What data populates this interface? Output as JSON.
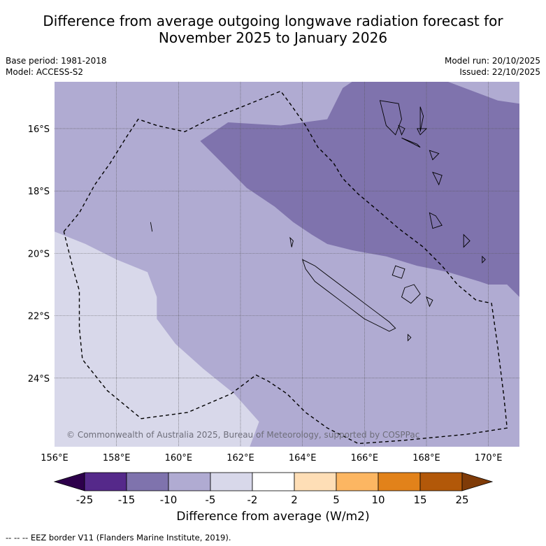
{
  "header": {
    "title_line1": "Difference from average outgoing longwave radiation forecast for",
    "title_line2": "November 2025 to January 2026",
    "base_period": "Base period: 1981-2018",
    "model": "Model: ACCESS-S2",
    "model_run": "Model run: 20/10/2025",
    "issued": "Issued: 22/10/2025"
  },
  "chart_data": {
    "type": "heatmap",
    "title": "Difference from average outgoing longwave radiation forecast for November 2025 to January 2026",
    "map_extent": {
      "lon": [
        156,
        171
      ],
      "lat": [
        -26.2,
        -14.5
      ]
    },
    "x_ticks": [
      {
        "value": 156,
        "label": "156°E"
      },
      {
        "value": 158,
        "label": "158°E"
      },
      {
        "value": 160,
        "label": "160°E"
      },
      {
        "value": 162,
        "label": "162°E"
      },
      {
        "value": 164,
        "label": "164°E"
      },
      {
        "value": 166,
        "label": "166°E"
      },
      {
        "value": 168,
        "label": "168°E"
      },
      {
        "value": 170,
        "label": "170°E"
      }
    ],
    "y_ticks": [
      {
        "value": -16,
        "label": "16°S"
      },
      {
        "value": -18,
        "label": "18°S"
      },
      {
        "value": -20,
        "label": "20°S"
      },
      {
        "value": -22,
        "label": "22°S"
      },
      {
        "value": -24,
        "label": "24°S"
      }
    ],
    "regions": [
      {
        "range": "-5 to -2",
        "color": "#d8d8ea",
        "polygon": [
          [
            156,
            -19.3
          ],
          [
            157,
            -19.7
          ],
          [
            158,
            -20.2
          ],
          [
            159,
            -20.6
          ],
          [
            159.3,
            -21.4
          ],
          [
            159.3,
            -22.1
          ],
          [
            159.9,
            -22.9
          ],
          [
            160.8,
            -23.7
          ],
          [
            161.8,
            -24.5
          ],
          [
            162.6,
            -25.4
          ],
          [
            162.3,
            -26.2
          ],
          [
            156,
            -26.2
          ]
        ]
      },
      {
        "range": "-15 to -10",
        "color": "#7f73ad",
        "polygon": [
          [
            160.7,
            -16.4
          ],
          [
            161.6,
            -15.8
          ],
          [
            163.3,
            -15.9
          ],
          [
            164.8,
            -15.7
          ],
          [
            165.3,
            -14.7
          ],
          [
            165.6,
            -14.5
          ],
          [
            168.7,
            -14.5
          ],
          [
            170.3,
            -15.1
          ],
          [
            171,
            -15.2
          ],
          [
            171,
            -21.4
          ],
          [
            170.6,
            -21.0
          ],
          [
            170,
            -21.0
          ],
          [
            169.7,
            -20.9
          ],
          [
            168.7,
            -20.6
          ],
          [
            167.7,
            -20.4
          ],
          [
            166.7,
            -20.1
          ],
          [
            165.6,
            -19.9
          ],
          [
            164.8,
            -19.7
          ],
          [
            164.3,
            -19.4
          ],
          [
            163.7,
            -19.0
          ],
          [
            163.1,
            -18.5
          ],
          [
            162.2,
            -17.9
          ],
          [
            161.6,
            -17.3
          ]
        ]
      }
    ],
    "base_fill": {
      "range": "-10 to -5",
      "color": "#b0abd2"
    },
    "eez_border": [
      [
        156.3,
        -19.3
      ],
      [
        156.8,
        -18.7
      ],
      [
        157.3,
        -17.8
      ],
      [
        157.8,
        -17.1
      ],
      [
        158.3,
        -16.3
      ],
      [
        158.7,
        -15.7
      ],
      [
        159.3,
        -15.9
      ],
      [
        160.2,
        -16.1
      ],
      [
        161,
        -15.7
      ],
      [
        161.8,
        -15.4
      ],
      [
        163.3,
        -14.8
      ],
      [
        163.6,
        -15.2
      ],
      [
        164.1,
        -15.9
      ],
      [
        164.5,
        -16.6
      ],
      [
        165,
        -17.1
      ],
      [
        165.3,
        -17.6
      ],
      [
        165.8,
        -18.1
      ],
      [
        166.4,
        -18.6
      ],
      [
        167.1,
        -19.2
      ],
      [
        167.9,
        -19.8
      ],
      [
        168.5,
        -20.4
      ],
      [
        169,
        -21.0
      ],
      [
        169.6,
        -21.5
      ],
      [
        170.1,
        -21.6
      ],
      [
        170.3,
        -23.0
      ],
      [
        170.5,
        -24.6
      ],
      [
        170.6,
        -25.6
      ],
      [
        169.3,
        -25.8
      ],
      [
        167.2,
        -26.0
      ],
      [
        165.8,
        -26.1
      ],
      [
        164.8,
        -25.6
      ],
      [
        164.1,
        -25.1
      ],
      [
        163.5,
        -24.5
      ],
      [
        162.9,
        -24.1
      ],
      [
        162.5,
        -23.9
      ],
      [
        161.7,
        -24.5
      ],
      [
        160.3,
        -25.1
      ],
      [
        158.8,
        -25.3
      ],
      [
        157.7,
        -24.4
      ],
      [
        156.9,
        -23.4
      ],
      [
        156.8,
        -22.4
      ],
      [
        156.8,
        -21.2
      ],
      [
        156.6,
        -20.5
      ],
      [
        156.3,
        -19.3
      ]
    ],
    "coastlines": [
      [
        [
          164.0,
          -20.2
        ],
        [
          164.4,
          -20.4
        ],
        [
          164.8,
          -20.7
        ],
        [
          165.2,
          -21.0
        ],
        [
          165.6,
          -21.3
        ],
        [
          166.0,
          -21.6
        ],
        [
          166.4,
          -21.9
        ],
        [
          166.8,
          -22.2
        ],
        [
          167.0,
          -22.4
        ],
        [
          166.8,
          -22.5
        ],
        [
          166.4,
          -22.3
        ],
        [
          166.0,
          -22.1
        ],
        [
          165.6,
          -21.8
        ],
        [
          165.2,
          -21.5
        ],
        [
          164.8,
          -21.2
        ],
        [
          164.4,
          -20.9
        ],
        [
          164.1,
          -20.5
        ],
        [
          164.0,
          -20.2
        ]
      ],
      [
        [
          163.6,
          -19.5
        ],
        [
          163.65,
          -19.8
        ],
        [
          163.7,
          -19.6
        ],
        [
          163.6,
          -19.5
        ]
      ],
      [
        [
          167.0,
          -20.4
        ],
        [
          167.3,
          -20.5
        ],
        [
          167.2,
          -20.8
        ],
        [
          166.9,
          -20.7
        ],
        [
          167.0,
          -20.4
        ]
      ],
      [
        [
          167.3,
          -21.1
        ],
        [
          167.6,
          -21.0
        ],
        [
          167.8,
          -21.3
        ],
        [
          167.5,
          -21.6
        ],
        [
          167.2,
          -21.4
        ],
        [
          167.3,
          -21.1
        ]
      ],
      [
        [
          168.0,
          -21.4
        ],
        [
          168.2,
          -21.5
        ],
        [
          168.1,
          -21.7
        ],
        [
          168.0,
          -21.4
        ]
      ],
      [
        [
          167.4,
          -22.6
        ],
        [
          167.5,
          -22.7
        ],
        [
          167.4,
          -22.8
        ],
        [
          167.4,
          -22.6
        ]
      ],
      [
        [
          166.5,
          -15.1
        ],
        [
          167.1,
          -15.2
        ],
        [
          167.2,
          -15.7
        ],
        [
          167.0,
          -16.2
        ],
        [
          166.7,
          -15.9
        ],
        [
          166.5,
          -15.1
        ]
      ],
      [
        [
          167.1,
          -15.9
        ],
        [
          167.3,
          -16.0
        ],
        [
          167.2,
          -16.2
        ],
        [
          167.1,
          -15.9
        ]
      ],
      [
        [
          167.8,
          -15.3
        ],
        [
          167.9,
          -15.6
        ],
        [
          167.8,
          -16.1
        ],
        [
          167.8,
          -15.3
        ]
      ],
      [
        [
          167.7,
          -16.0
        ],
        [
          168.0,
          -16.0
        ],
        [
          167.8,
          -16.2
        ],
        [
          167.7,
          -16.0
        ]
      ],
      [
        [
          167.2,
          -16.3
        ],
        [
          167.7,
          -16.5
        ],
        [
          167.8,
          -16.6
        ],
        [
          167.6,
          -16.5
        ],
        [
          167.2,
          -16.3
        ]
      ],
      [
        [
          168.1,
          -16.7
        ],
        [
          168.4,
          -16.8
        ],
        [
          168.2,
          -17.0
        ],
        [
          168.1,
          -16.7
        ]
      ],
      [
        [
          168.2,
          -17.4
        ],
        [
          168.5,
          -17.5
        ],
        [
          168.4,
          -17.8
        ],
        [
          168.2,
          -17.4
        ]
      ],
      [
        [
          168.1,
          -18.7
        ],
        [
          168.3,
          -18.8
        ],
        [
          168.5,
          -19.1
        ],
        [
          168.2,
          -19.2
        ],
        [
          168.1,
          -18.7
        ]
      ],
      [
        [
          169.2,
          -19.4
        ],
        [
          169.4,
          -19.6
        ],
        [
          169.2,
          -19.8
        ],
        [
          169.2,
          -19.4
        ]
      ],
      [
        [
          169.8,
          -20.1
        ],
        [
          169.9,
          -20.2
        ],
        [
          169.8,
          -20.3
        ],
        [
          169.8,
          -20.1
        ]
      ],
      [
        [
          159.1,
          -19.0
        ],
        [
          159.15,
          -19.3
        ],
        [
          159.1,
          -19.0
        ]
      ]
    ],
    "colorbar": {
      "title": "Difference from average (W/m2)",
      "tick_labels": [
        "-25",
        "-15",
        "-10",
        "-5",
        "-2",
        "2",
        "5",
        "10",
        "15",
        "25"
      ],
      "bins": [
        {
          "from": -25,
          "to": -15,
          "color": "#55298a"
        },
        {
          "from": -15,
          "to": -10,
          "color": "#7f73ad"
        },
        {
          "from": -10,
          "to": -5,
          "color": "#b0abd2"
        },
        {
          "from": -5,
          "to": -2,
          "color": "#d8d8ea"
        },
        {
          "from": -2,
          "to": 2,
          "color": "#ffffff"
        },
        {
          "from": 2,
          "to": 5,
          "color": "#fedeb6"
        },
        {
          "from": 5,
          "to": 10,
          "color": "#fcb662"
        },
        {
          "from": 10,
          "to": 15,
          "color": "#e2821a"
        },
        {
          "from": 15,
          "to": 25,
          "color": "#b25809"
        }
      ],
      "under_color": "#2d004b",
      "over_color": "#7f3b08"
    },
    "copyright": "© Commonwealth of Australia 2025, Bureau of Meteorology, supported by COSPPac"
  },
  "legend": {
    "eez_note": "-- -- -- EEZ border V11 (Flanders Marine Institute, 2019)."
  }
}
